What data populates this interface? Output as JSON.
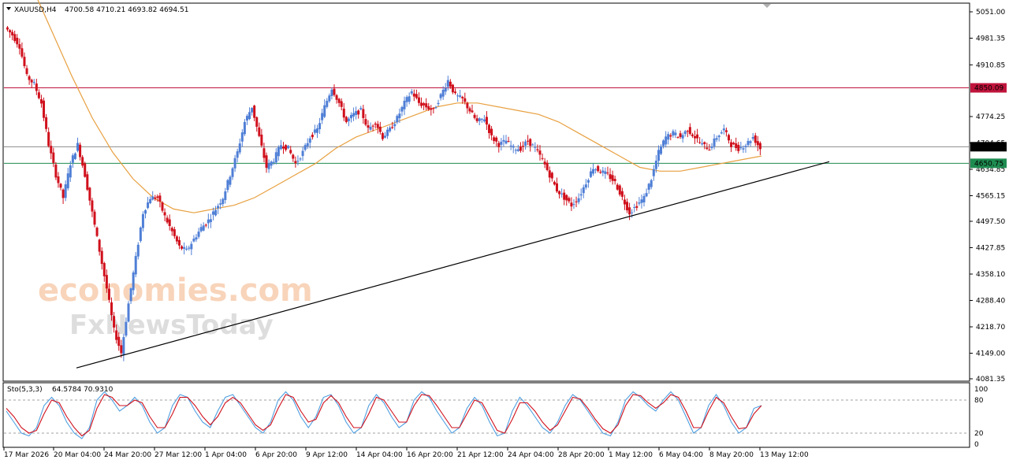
{
  "header": {
    "symbol": "XAUUSD,H4",
    "ohlc": "4700.58 4710.21 4693.82 4694.51"
  },
  "watermark": {
    "line1": "economies.com",
    "line2": "FxNewsToday"
  },
  "chart_data": {
    "type": "candlestick",
    "price_axis": {
      "ylim": [
        4081.35,
        5051.0
      ],
      "ticks": [
        "5051.00",
        "4981.35",
        "4910.85",
        "4850.09",
        "4774.25",
        "4704.65",
        "4694.51",
        "4650.75",
        "4634.85",
        "4565.15",
        "4497.50",
        "4427.85",
        "4358.10",
        "4288.40",
        "4218.70",
        "4149.00",
        "4081.35"
      ]
    },
    "x_axis": {
      "ticks": [
        "17 Mar 2026",
        "20 Mar 04:00",
        "24 Mar 20:00",
        "27 Mar 12:00",
        "1 Apr 04:00",
        "6 Apr 20:00",
        "9 Apr 12:00",
        "14 Apr 04:00",
        "16 Apr 20:00",
        "21 Apr 12:00",
        "24 Apr 04:00",
        "28 Apr 20:00",
        "1 May 12:00",
        "6 May 04:00",
        "8 May 20:00",
        "13 May 12:00"
      ]
    },
    "levels": [
      {
        "name": "resistance",
        "value": 4850.09,
        "label": "4850.09",
        "color": "#c0143c"
      },
      {
        "name": "current",
        "value": 4694.51,
        "label": "4694.51",
        "color": "#000000"
      },
      {
        "name": "support",
        "value": 4650.75,
        "label": "4650.75",
        "color": "#1e8c50"
      }
    ],
    "trendline": {
      "from": [
        0,
        4110
      ],
      "to": [
        1,
        4655
      ]
    },
    "price_path": [
      5010,
      4990,
      4960,
      4880,
      4860,
      4810,
      4700,
      4620,
      4560,
      4650,
      4700,
      4620,
      4520,
      4420,
      4320,
      4210,
      4150,
      4280,
      4400,
      4520,
      4560,
      4560,
      4510,
      4470,
      4430,
      4420,
      4450,
      4480,
      4500,
      4530,
      4560,
      4620,
      4680,
      4760,
      4800,
      4720,
      4640,
      4660,
      4700,
      4690,
      4650,
      4680,
      4720,
      4740,
      4800,
      4850,
      4810,
      4760,
      4780,
      4790,
      4740,
      4760,
      4720,
      4740,
      4770,
      4810,
      4840,
      4810,
      4800,
      4790,
      4830,
      4870,
      4830,
      4820,
      4790,
      4760,
      4770,
      4720,
      4700,
      4710,
      4690,
      4690,
      4710,
      4690,
      4660,
      4620,
      4580,
      4560,
      4540,
      4560,
      4600,
      4640,
      4630,
      4620,
      4600,
      4560,
      4520,
      4540,
      4560,
      4610,
      4680,
      4720,
      4730,
      4720,
      4740,
      4720,
      4700,
      4690,
      4720,
      4740,
      4700,
      4690,
      4700,
      4720,
      4690
    ],
    "ma_path": [
      5120,
      5000,
      4880,
      4770,
      4680,
      4610,
      4560,
      4530,
      4520,
      4530,
      4540,
      4560,
      4590,
      4620,
      4650,
      4690,
      4720,
      4740,
      4760,
      4780,
      4800,
      4810,
      4810,
      4800,
      4790,
      4780,
      4760,
      4730,
      4700,
      4670,
      4640,
      4630,
      4630,
      4640,
      4650,
      4660,
      4670
    ],
    "stochastic": {
      "label": "Sto(5,3,3)",
      "values_label": "64.5784 70.9310",
      "main": 64.5784,
      "signal": 70.931,
      "ylim": [
        0,
        100
      ],
      "levels": [
        "100",
        "80",
        "20",
        "0"
      ],
      "k_path": [
        60,
        40,
        20,
        15,
        30,
        70,
        85,
        70,
        40,
        20,
        10,
        30,
        80,
        95,
        80,
        60,
        70,
        85,
        70,
        40,
        20,
        30,
        70,
        90,
        85,
        60,
        40,
        30,
        60,
        85,
        90,
        70,
        50,
        30,
        20,
        40,
        80,
        95,
        80,
        50,
        30,
        50,
        85,
        90,
        70,
        40,
        20,
        30,
        70,
        90,
        75,
        50,
        30,
        40,
        80,
        95,
        85,
        60,
        40,
        20,
        30,
        65,
        85,
        70,
        40,
        15,
        20,
        60,
        85,
        70,
        50,
        30,
        20,
        40,
        70,
        90,
        80,
        60,
        40,
        20,
        15,
        40,
        80,
        95,
        85,
        70,
        60,
        80,
        95,
        80,
        50,
        20,
        30,
        70,
        90,
        70,
        40,
        20,
        30,
        65,
        70
      ],
      "d_path": [
        65,
        50,
        30,
        20,
        25,
        55,
        80,
        75,
        50,
        30,
        15,
        25,
        65,
        90,
        85,
        70,
        70,
        80,
        75,
        50,
        30,
        30,
        55,
        85,
        85,
        70,
        50,
        35,
        50,
        75,
        85,
        75,
        55,
        35,
        25,
        35,
        65,
        90,
        85,
        60,
        40,
        45,
        75,
        88,
        75,
        50,
        30,
        30,
        55,
        85,
        80,
        60,
        40,
        40,
        70,
        90,
        88,
        70,
        50,
        30,
        30,
        55,
        80,
        75,
        50,
        25,
        20,
        45,
        75,
        75,
        60,
        40,
        25,
        35,
        60,
        85,
        82,
        65,
        45,
        28,
        20,
        35,
        70,
        90,
        88,
        75,
        65,
        75,
        90,
        85,
        60,
        30,
        30,
        60,
        85,
        75,
        50,
        28,
        30,
        55,
        70
      ]
    }
  }
}
